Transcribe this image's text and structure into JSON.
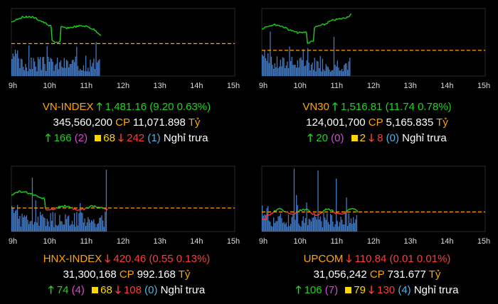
{
  "time_ticks": [
    "9h",
    "10h",
    "11h",
    "12h",
    "13h",
    "14h",
    "15h"
  ],
  "colors": {
    "up": "#1ed51e",
    "down": "#ff3b3b",
    "ref": "#ffa500",
    "volume": "#4a86d8"
  },
  "panels": [
    {
      "name": "VN-INDEX",
      "direction": "up",
      "value": "1,481.16",
      "change": "(9.20 0.63%)",
      "volume": "345,560,200",
      "cp_label": "CP",
      "value_traded": "11,071.898",
      "unit": "Tỷ",
      "advancers": "166",
      "ceiling": "(2)",
      "unchanged": "68",
      "decliners": "242",
      "floor": "(1)",
      "status": "Nghỉ trưa"
    },
    {
      "name": "VN30",
      "direction": "up",
      "value": "1,516.81",
      "change": "(11.74 0.78%)",
      "volume": "124,001,700",
      "cp_label": "CP",
      "value_traded": "5,165.835",
      "unit": "Tỷ",
      "advancers": "20",
      "ceiling": "(0)",
      "unchanged": "2",
      "decliners": "8",
      "floor": "(0)",
      "status": "Nghỉ trưa"
    },
    {
      "name": "HNX-INDEX",
      "direction": "down",
      "value": "420.46",
      "change": "(0.55 0.13%)",
      "volume": "31,300,168",
      "cp_label": "CP",
      "value_traded": "992.168",
      "unit": "Tỷ",
      "advancers": "74",
      "ceiling": "(4)",
      "unchanged": "68",
      "decliners": "108",
      "floor": "(0)",
      "status": "Nghỉ trưa"
    },
    {
      "name": "UPCOM",
      "direction": "down",
      "value": "110.84",
      "change": "(0.01 0.01%)",
      "volume": "31,056,242",
      "cp_label": "CP",
      "value_traded": "731.677",
      "unit": "Tỷ",
      "advancers": "106",
      "ceiling": "(7)",
      "unchanged": "79",
      "decliners": "130",
      "floor": "(4)",
      "status": "Nghỉ trưa"
    }
  ]
}
